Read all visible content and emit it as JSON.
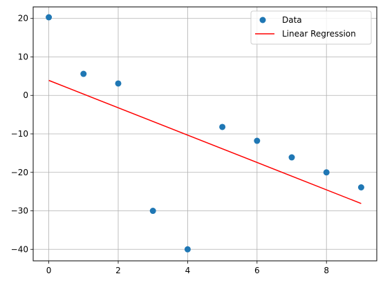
{
  "chart_data": {
    "type": "scatter",
    "title": "",
    "xlabel": "",
    "ylabel": "",
    "xlim": [
      -0.45,
      9.45
    ],
    "ylim": [
      -43.0,
      23.0
    ],
    "xticks": [
      0,
      2,
      4,
      6,
      8
    ],
    "xtick_labels": [
      "0",
      "2",
      "4",
      "6",
      "8"
    ],
    "yticks": [
      20,
      10,
      0,
      -10,
      -20,
      -30,
      -40
    ],
    "ytick_labels": [
      "20",
      "10",
      "0",
      "−10",
      "−20",
      "−30",
      "−40"
    ],
    "grid": true,
    "legend_position": "top-right",
    "series": [
      {
        "name": "Data",
        "kind": "scatter",
        "color": "#1f77b4",
        "x": [
          0,
          1,
          2,
          3,
          4,
          5,
          6,
          7,
          8,
          9
        ],
        "y": [
          20.3,
          5.6,
          3.1,
          -30.0,
          -40.0,
          -8.2,
          -11.8,
          -16.1,
          -20.0,
          -23.9
        ]
      },
      {
        "name": "Linear Regression",
        "kind": "line",
        "color": "#ff0000",
        "x": [
          0,
          9
        ],
        "y": [
          3.9,
          -28.1
        ]
      }
    ]
  }
}
